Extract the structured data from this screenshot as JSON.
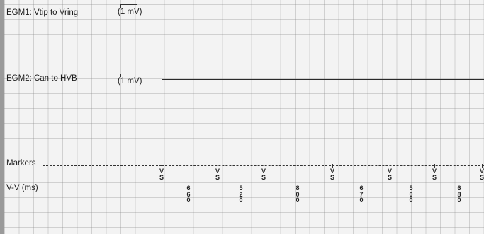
{
  "channels": {
    "egm1": {
      "label": "EGM1: Vtip to Vring",
      "calibration": "(1 mV)"
    },
    "egm2": {
      "label": "EGM2: Can to HVB",
      "calibration": "(1 mV)"
    }
  },
  "markers": {
    "label": "Markers",
    "events": [
      {
        "top": "V",
        "bottom": "S"
      },
      {
        "top": "V",
        "bottom": "S"
      },
      {
        "top": "V",
        "bottom": "S"
      },
      {
        "top": "V",
        "bottom": "S"
      },
      {
        "top": "V",
        "bottom": "S"
      },
      {
        "top": "V",
        "bottom": "S"
      },
      {
        "top": "V",
        "bottom": "S"
      }
    ]
  },
  "vv": {
    "label": "V-V (ms)",
    "intervals": [
      "660",
      "520",
      "800",
      "670",
      "500",
      "680"
    ]
  }
}
